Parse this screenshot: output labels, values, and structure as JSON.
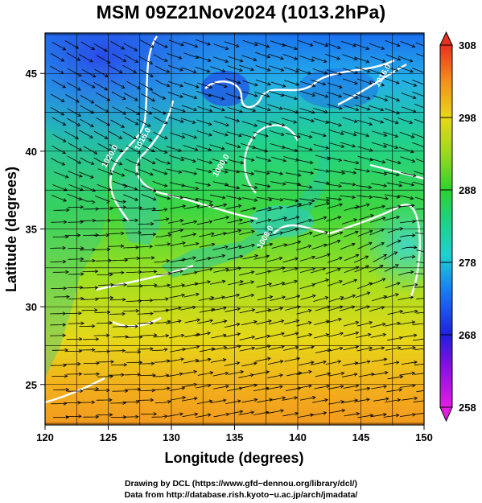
{
  "title": "MSM 09Z21Nov2024 (1013.2hPa)",
  "x_axis": {
    "label": "Longitude (degrees)",
    "ticks": [
      {
        "value": 120,
        "label": "120"
      },
      {
        "value": 125,
        "label": "125"
      },
      {
        "value": 130,
        "label": "130"
      },
      {
        "value": 135,
        "label": "135"
      },
      {
        "value": 140,
        "label": "140"
      },
      {
        "value": 145,
        "label": "145"
      },
      {
        "value": 150,
        "label": "150"
      }
    ],
    "range": [
      120,
      150
    ]
  },
  "y_axis": {
    "label": "Latitude  (degrees)",
    "ticks": [
      {
        "value": 25,
        "label": "25"
      },
      {
        "value": 30,
        "label": "30"
      },
      {
        "value": 35,
        "label": "35"
      },
      {
        "value": 40,
        "label": "40"
      },
      {
        "value": 45,
        "label": "45"
      }
    ],
    "range": [
      22.4,
      47.6
    ]
  },
  "colorbar": {
    "range": [
      258,
      308
    ],
    "ticks": [
      {
        "value": 308,
        "label": "308"
      },
      {
        "value": 298,
        "label": "298"
      },
      {
        "value": 288,
        "label": "288"
      },
      {
        "value": 278,
        "label": "278"
      },
      {
        "value": 268,
        "label": "268"
      },
      {
        "value": 258,
        "label": "258"
      }
    ]
  },
  "contour_labels": [
    {
      "text": "1020.0",
      "lon": 125.3,
      "lat": 39.6
    },
    {
      "text": "1016.0",
      "lon": 127.9,
      "lat": 40.7
    },
    {
      "text": "1016.0",
      "lon": 146.9,
      "lat": 44.8
    },
    {
      "text": "1008.0",
      "lon": 137.6,
      "lat": 34.4
    },
    {
      "text": "1000.0",
      "lon": 134.1,
      "lat": 39.0
    }
  ],
  "credits": {
    "line1": "Drawing by DCL (https://www.gfd−dennou.org/library/dcl/)",
    "line2": "Data from http://database.rish.kyoto−u.ac.jp/arch/jmadata/"
  }
}
